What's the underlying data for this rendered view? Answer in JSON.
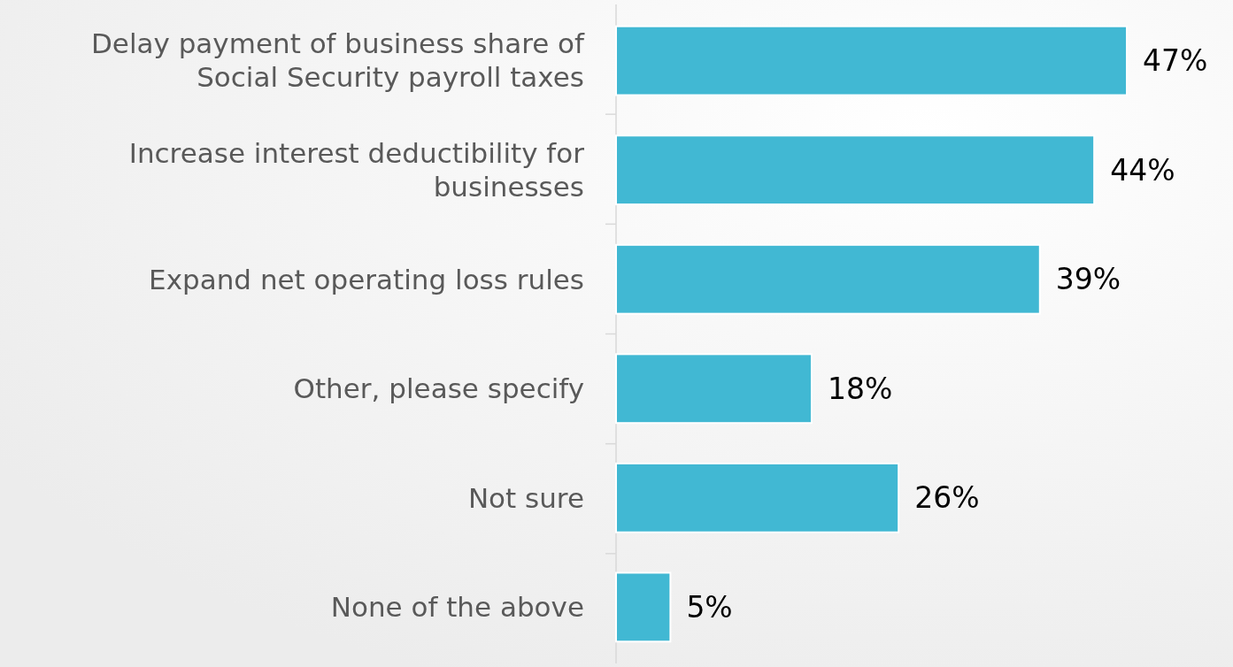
{
  "chart_data": {
    "type": "bar",
    "orientation": "horizontal",
    "categories": [
      "Delay payment of business share of Social Security payroll taxes",
      "Increase interest deductibility for businesses",
      "Expand net operating loss rules",
      "Other, please specify",
      "Not sure",
      "None of the above"
    ],
    "values": [
      47,
      44,
      39,
      18,
      26,
      5
    ],
    "value_labels": [
      "47%",
      "44%",
      "39%",
      "18%",
      "26%",
      "5%"
    ],
    "color": "#41b8d3"
  }
}
